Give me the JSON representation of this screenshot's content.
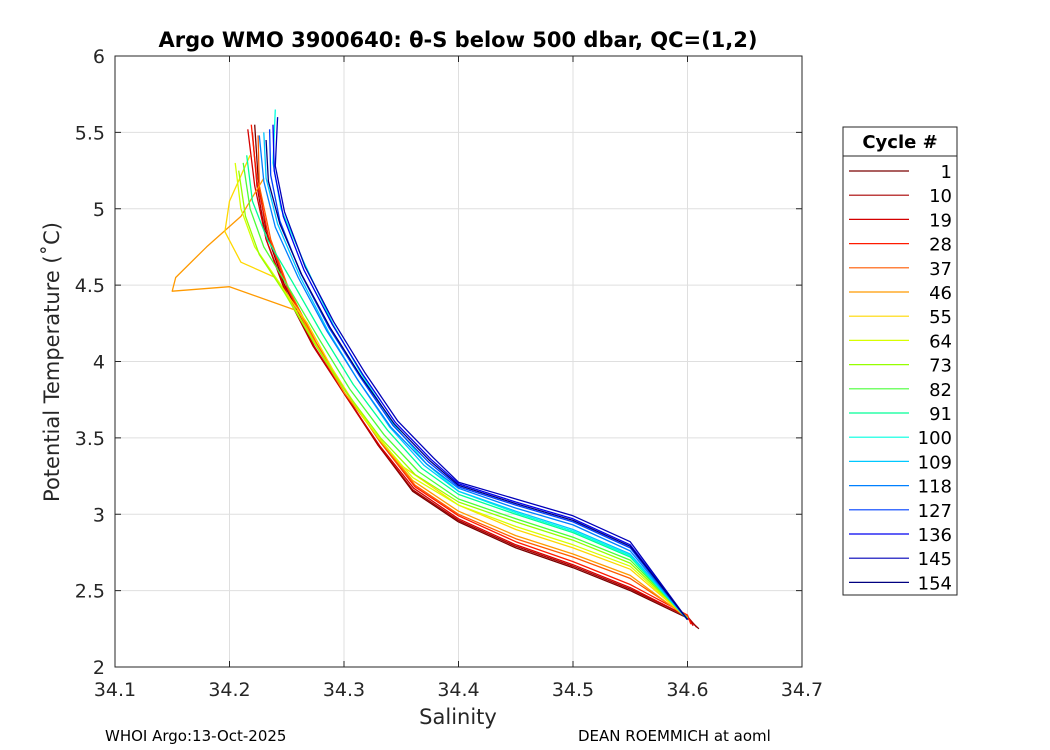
{
  "chart_data": {
    "type": "line",
    "title": "Argo WMO 3900640: θ-S below 500 dbar,  QC=(1,2)",
    "xlabel": "Salinity",
    "ylabel": "Potential Temperature (˚C)",
    "xlim": [
      34.1,
      34.7
    ],
    "ylim": [
      2,
      6
    ],
    "x_ticks": [
      "34.1",
      "34.2",
      "34.3",
      "34.4",
      "34.5",
      "34.6",
      "34.7"
    ],
    "y_ticks": [
      "2",
      "2.5",
      "3",
      "3.5",
      "4",
      "4.5",
      "5",
      "5.5",
      "6"
    ],
    "grid": true,
    "legend": {
      "title": "Cycle #",
      "placement": "right, outside",
      "entries": [
        "1",
        "10",
        "19",
        "28",
        "37",
        "46",
        "55",
        "64",
        "73",
        "82",
        "91",
        "100",
        "109",
        "118",
        "127",
        "136",
        "145",
        "154"
      ],
      "colors": [
        "#7a0000",
        "#a80000",
        "#d40000",
        "#ff1a00",
        "#ff5a00",
        "#ff9a00",
        "#ffd800",
        "#d8ff00",
        "#96ff00",
        "#4aff38",
        "#00ff96",
        "#00ffe0",
        "#00c8ff",
        "#0080ff",
        "#0040ff",
        "#0000f0",
        "#0000b8",
        "#000080"
      ]
    },
    "series": [
      {
        "cycle": 1,
        "x": [
          34.222,
          34.225,
          34.232,
          34.248,
          34.272,
          34.3,
          34.33,
          34.36,
          34.4,
          34.45,
          34.5,
          34.55,
          34.6,
          34.61
        ],
        "y": [
          5.55,
          5.2,
          4.85,
          4.5,
          4.15,
          3.8,
          3.45,
          3.15,
          2.95,
          2.78,
          2.65,
          2.5,
          2.32,
          2.25
        ]
      },
      {
        "cycle": 10,
        "x": [
          34.22,
          34.224,
          34.232,
          34.249,
          34.273,
          34.301,
          34.33,
          34.36,
          34.4,
          34.45,
          34.5,
          34.55,
          34.6,
          34.608
        ],
        "y": [
          5.5,
          5.15,
          4.8,
          4.45,
          4.1,
          3.78,
          3.45,
          3.16,
          2.96,
          2.79,
          2.66,
          2.51,
          2.33,
          2.26
        ]
      },
      {
        "cycle": 19,
        "x": [
          34.216,
          34.222,
          34.232,
          34.25,
          34.274,
          34.301,
          34.331,
          34.361,
          34.4,
          34.45,
          34.5,
          34.55,
          34.6,
          34.605
        ],
        "y": [
          5.52,
          5.15,
          4.8,
          4.45,
          4.1,
          3.78,
          3.45,
          3.17,
          2.97,
          2.8,
          2.67,
          2.52,
          2.33,
          2.27
        ]
      },
      {
        "cycle": 28,
        "x": [
          34.219,
          34.224,
          34.234,
          34.251,
          34.275,
          34.302,
          34.332,
          34.362,
          34.4,
          34.45,
          34.5,
          34.55,
          34.6,
          34.603
        ],
        "y": [
          5.55,
          5.18,
          4.82,
          4.47,
          4.12,
          3.8,
          3.47,
          3.18,
          2.99,
          2.82,
          2.69,
          2.54,
          2.34,
          2.28
        ]
      },
      {
        "cycle": 37,
        "x": [
          34.225,
          34.226,
          34.236,
          34.252,
          34.276,
          34.302,
          34.332,
          34.362,
          34.4,
          34.45,
          34.5,
          34.55,
          34.6
        ],
        "y": [
          5.48,
          5.15,
          4.8,
          4.47,
          4.12,
          3.8,
          3.47,
          3.19,
          3.0,
          2.84,
          2.72,
          2.58,
          2.33
        ]
      },
      {
        "cycle": 46,
        "x": [
          34.23,
          34.21,
          34.18,
          34.153,
          34.15,
          34.2,
          34.26,
          34.28,
          34.3,
          34.33,
          34.36,
          34.4,
          34.45,
          34.5,
          34.55,
          34.6
        ],
        "y": [
          5.2,
          4.95,
          4.75,
          4.55,
          4.46,
          4.49,
          4.33,
          4.05,
          3.8,
          3.5,
          3.22,
          3.02,
          2.86,
          2.74,
          2.6,
          2.32
        ]
      },
      {
        "cycle": 55,
        "x": [
          34.218,
          34.2,
          34.196,
          34.21,
          34.24,
          34.268,
          34.29,
          34.318,
          34.35,
          34.4,
          34.45,
          34.5,
          34.55,
          34.6
        ],
        "y": [
          5.35,
          5.05,
          4.85,
          4.65,
          4.55,
          4.25,
          3.95,
          3.62,
          3.32,
          3.06,
          2.9,
          2.78,
          2.64,
          2.32
        ]
      },
      {
        "cycle": 64,
        "x": [
          34.205,
          34.21,
          34.222,
          34.245,
          34.272,
          34.3,
          34.33,
          34.36,
          34.4,
          34.45,
          34.5,
          34.55,
          34.6
        ],
        "y": [
          5.3,
          5.0,
          4.75,
          4.5,
          4.15,
          3.82,
          3.5,
          3.24,
          3.06,
          2.92,
          2.8,
          2.66,
          2.32
        ]
      },
      {
        "cycle": 73,
        "x": [
          34.208,
          34.214,
          34.226,
          34.248,
          34.274,
          34.302,
          34.332,
          34.362,
          34.4,
          34.45,
          34.5,
          34.55,
          34.6
        ],
        "y": [
          5.25,
          4.95,
          4.7,
          4.45,
          4.12,
          3.8,
          3.5,
          3.26,
          3.08,
          2.95,
          2.83,
          2.68,
          2.32
        ]
      },
      {
        "cycle": 82,
        "x": [
          34.212,
          34.218,
          34.23,
          34.252,
          34.278,
          34.305,
          34.335,
          34.365,
          34.4,
          34.45,
          34.5,
          34.55,
          34.6
        ],
        "y": [
          5.3,
          5.0,
          4.75,
          4.48,
          4.15,
          3.82,
          3.52,
          3.28,
          3.1,
          2.97,
          2.85,
          2.7,
          2.32
        ]
      },
      {
        "cycle": 91,
        "x": [
          34.215,
          34.22,
          34.233,
          34.255,
          34.281,
          34.308,
          34.338,
          34.368,
          34.4,
          34.45,
          34.5,
          34.55,
          34.6
        ],
        "y": [
          5.35,
          5.05,
          4.8,
          4.52,
          4.18,
          3.85,
          3.55,
          3.3,
          3.13,
          3.0,
          2.88,
          2.72,
          2.31
        ]
      },
      {
        "cycle": 100,
        "x": [
          34.24,
          34.238,
          34.245,
          34.265,
          34.29,
          34.315,
          34.342,
          34.372,
          34.4,
          34.45,
          34.5,
          34.55,
          34.6
        ],
        "y": [
          5.65,
          5.3,
          5.0,
          4.65,
          4.25,
          3.92,
          3.6,
          3.33,
          3.15,
          3.01,
          2.89,
          2.73,
          2.31
        ]
      },
      {
        "cycle": 109,
        "x": [
          34.23,
          34.232,
          34.242,
          34.262,
          34.286,
          34.312,
          34.34,
          34.37,
          34.4,
          34.45,
          34.5,
          34.55,
          34.6
        ],
        "y": [
          5.5,
          5.2,
          4.9,
          4.55,
          4.2,
          3.88,
          3.57,
          3.32,
          3.15,
          3.02,
          2.9,
          2.74,
          2.31
        ]
      },
      {
        "cycle": 118,
        "x": [
          34.226,
          34.23,
          34.24,
          34.26,
          34.285,
          34.312,
          34.341,
          34.372,
          34.4,
          34.45,
          34.5,
          34.55,
          34.6
        ],
        "y": [
          5.48,
          5.18,
          4.88,
          4.55,
          4.2,
          3.88,
          3.57,
          3.33,
          3.17,
          3.04,
          2.93,
          2.76,
          2.31
        ]
      },
      {
        "cycle": 127,
        "x": [
          34.235,
          34.236,
          34.244,
          34.262,
          34.287,
          34.314,
          34.343,
          34.374,
          34.4,
          34.45,
          34.5,
          34.55,
          34.6
        ],
        "y": [
          5.52,
          5.22,
          4.92,
          4.58,
          4.22,
          3.9,
          3.58,
          3.34,
          3.18,
          3.06,
          2.95,
          2.78,
          2.31
        ]
      },
      {
        "cycle": 136,
        "x": [
          34.238,
          34.239,
          34.247,
          34.265,
          34.29,
          34.316,
          34.345,
          34.376,
          34.4,
          34.45,
          34.5,
          34.55,
          34.6
        ],
        "y": [
          5.55,
          5.25,
          4.95,
          4.6,
          4.24,
          3.92,
          3.6,
          3.36,
          3.2,
          3.08,
          2.97,
          2.8,
          2.31
        ]
      },
      {
        "cycle": 145,
        "x": [
          34.242,
          34.24,
          34.248,
          34.266,
          34.291,
          34.318,
          34.347,
          34.378,
          34.4,
          34.45,
          34.5,
          34.55,
          34.6
        ],
        "y": [
          5.6,
          5.28,
          4.98,
          4.62,
          4.26,
          3.93,
          3.61,
          3.37,
          3.21,
          3.1,
          2.99,
          2.82,
          2.31
        ]
      },
      {
        "cycle": 154,
        "x": [
          34.232,
          34.234,
          34.244,
          34.263,
          34.288,
          34.315,
          34.344,
          34.375,
          34.4,
          34.45,
          34.5,
          34.55,
          34.6
        ],
        "y": [
          5.45,
          5.18,
          4.9,
          4.57,
          4.22,
          3.9,
          3.59,
          3.35,
          3.19,
          3.07,
          2.96,
          2.79,
          2.31
        ]
      }
    ]
  },
  "footer": {
    "left": "WHOI Argo:13-Oct-2025",
    "right": "DEAN ROEMMICH at aoml"
  }
}
